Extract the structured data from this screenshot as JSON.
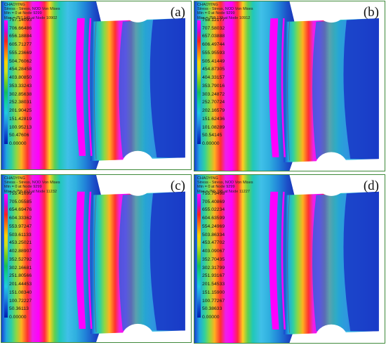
{
  "colors": {
    "frame": "#3f8a3a",
    "legend_top_to_bottom": [
      "#ff00ff",
      "#d000e0",
      "#ff2020",
      "#ff7a10",
      "#ffd000",
      "#c8e020",
      "#70d020",
      "#10c060",
      "#10d0a0",
      "#20c8e0",
      "#2090e0",
      "#1050d0",
      "#0020b0"
    ]
  },
  "panels": [
    {
      "id": "a",
      "label": "(a)",
      "header": [
        "CHAOYING",
        "Stress - Stress, NOD Von Mises",
        "Min = 0 at Node 9299",
        "Max = 757.141 at Node 10902"
      ],
      "legend": [
        "757.14093",
        "706.66486",
        "656.18884",
        "605.71277",
        "555.23669",
        "504.76062",
        "454.28458",
        "403.80850",
        "353.33243",
        "302.85638",
        "252.38031",
        "201.90425",
        "151.42819",
        "100.95213",
        "50.47606",
        "0.00000"
      ]
    },
    {
      "id": "b",
      "label": "(b)",
      "header": [
        "CHAOYING",
        "Stress - Stress, NOD Von Mises",
        "Min = 0 at Node 9299",
        "Max = 758.122 at Node 10912"
      ],
      "legend": [
        "758.12177",
        "707.58032",
        "657.03888",
        "606.49744",
        "555.95593",
        "505.41449",
        "454.87305",
        "404.33157",
        "353.79016",
        "303.24872",
        "252.70724",
        "202.16579",
        "151.62436",
        "101.08289",
        "50.54145",
        "0.00000"
      ]
    },
    {
      "id": "c",
      "label": "(c)",
      "header": [
        "CHAOYING",
        "Stress - Stress, NOD Von Mises",
        "Min = 0 at Node 9299",
        "Max = 755.417 at Node 11232"
      ],
      "legend": [
        "755.41699",
        "705.05585",
        "654.69476",
        "604.33362",
        "553.97247",
        "503.61133",
        "453.25021",
        "402.88907",
        "352.52792",
        "302.16681",
        "251.80566",
        "201.44453",
        "151.08340",
        "100.72227",
        "50.36113",
        "0.00000"
      ]
    },
    {
      "id": "d",
      "label": "(d)",
      "header": [
        "CHAOYING",
        "Stress - Stress, NOD Von Mises",
        "Min = 0 at Node 9299",
        "Max = 755.795 at Node 11227"
      ],
      "legend": [
        "755.79498",
        "705.40869",
        "655.02234",
        "604.63599",
        "554.24969",
        "503.86334",
        "453.47702",
        "403.09067",
        "352.70435",
        "302.31799",
        "251.93167",
        "201.54533",
        "151.15900",
        "100.77267",
        "50.38633",
        "0.00000"
      ]
    }
  ]
}
